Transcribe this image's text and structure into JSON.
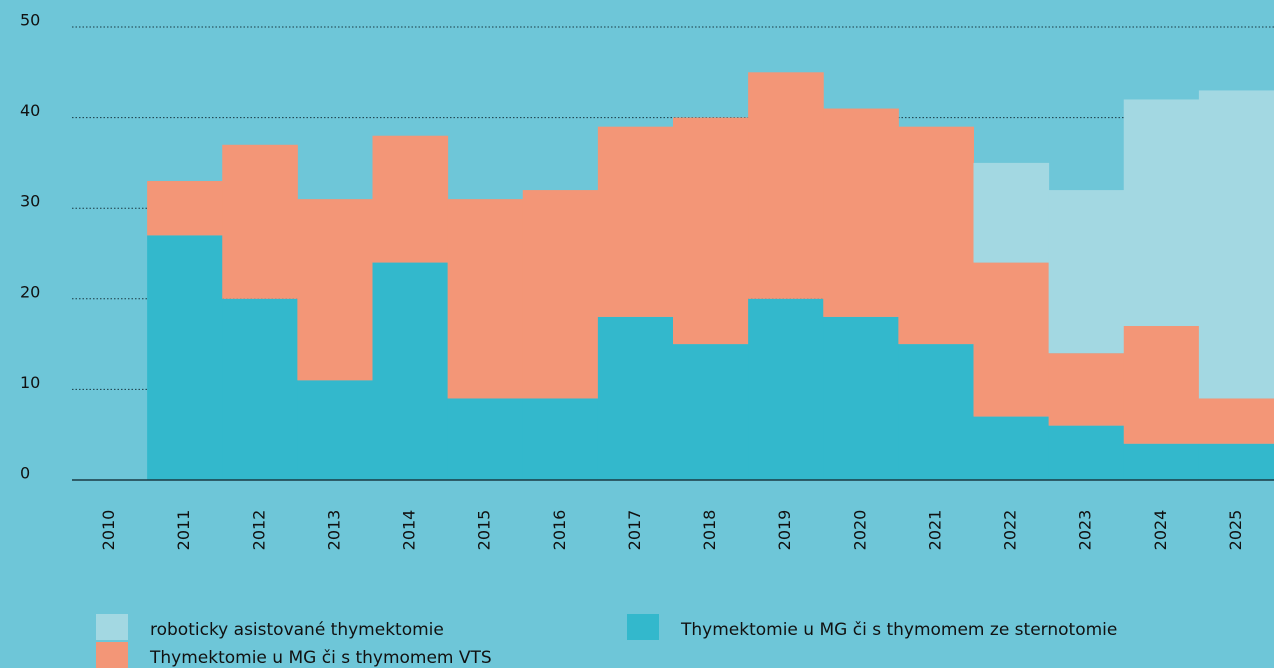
{
  "chart_data": {
    "type": "stacked_bar",
    "categories": [
      "2010",
      "2011",
      "2012",
      "2013",
      "2014",
      "2015",
      "2016",
      "2017",
      "2018",
      "2019",
      "2020",
      "2021",
      "2022",
      "2023",
      "2024",
      "2025"
    ],
    "series": [
      {
        "name": "Thymektomie u MG či s thymomem ze sternotomie",
        "color": "#33b8cc",
        "values": [
          0,
          27,
          20,
          11,
          24,
          9,
          9,
          18,
          15,
          20,
          18,
          15,
          7,
          6,
          4,
          4
        ]
      },
      {
        "name": "Thymektomie u MG či s thymomem VTS",
        "color": "#f39677",
        "values": [
          0,
          6,
          17,
          20,
          14,
          22,
          23,
          21,
          25,
          25,
          23,
          24,
          17,
          8,
          13,
          5
        ]
      },
      {
        "name": "roboticky asistované thymektomie",
        "color": "#a3d8e2",
        "values": [
          0,
          0,
          0,
          0,
          0,
          0,
          0,
          0,
          0,
          0,
          0,
          0,
          11,
          18,
          25,
          34
        ]
      }
    ],
    "ylim": [
      0,
      50
    ],
    "yticks": [
      0,
      10,
      20,
      30,
      40,
      50
    ],
    "grid": true
  }
}
